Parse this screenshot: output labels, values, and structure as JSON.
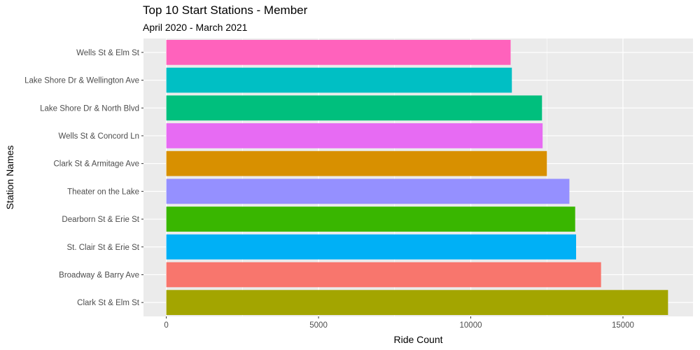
{
  "chart_data": {
    "type": "bar",
    "orientation": "horizontal",
    "title": "Top 10 Start Stations - Member",
    "subtitle": "April 2020 - March 2021",
    "xlabel": "Ride Count",
    "ylabel": "Station Names",
    "xlim": [
      -750,
      17300
    ],
    "xticks": [
      0,
      5000,
      10000,
      15000
    ],
    "grid": true,
    "categories": [
      "Clark St & Elm St",
      "Broadway & Barry Ave",
      "St. Clair St & Erie St",
      "Dearborn St & Erie St",
      "Theater on the Lake",
      "Clark St & Armitage Ave",
      "Wells St & Concord Ln",
      "Lake Shore Dr & North Blvd",
      "Lake Shore Dr & Wellington Ave",
      "Wells St & Elm St"
    ],
    "values": [
      16480,
      14280,
      13460,
      13430,
      13240,
      12500,
      12360,
      12340,
      11350,
      11310
    ],
    "colors": [
      "#A3A500",
      "#F8766D",
      "#00B0F6",
      "#39B600",
      "#9590FF",
      "#D89000",
      "#E76BF3",
      "#00BF7D",
      "#00BFC4",
      "#FF62BC"
    ],
    "panel_background": "#EBEBEB",
    "gridline_color": "#FFFFFF"
  }
}
